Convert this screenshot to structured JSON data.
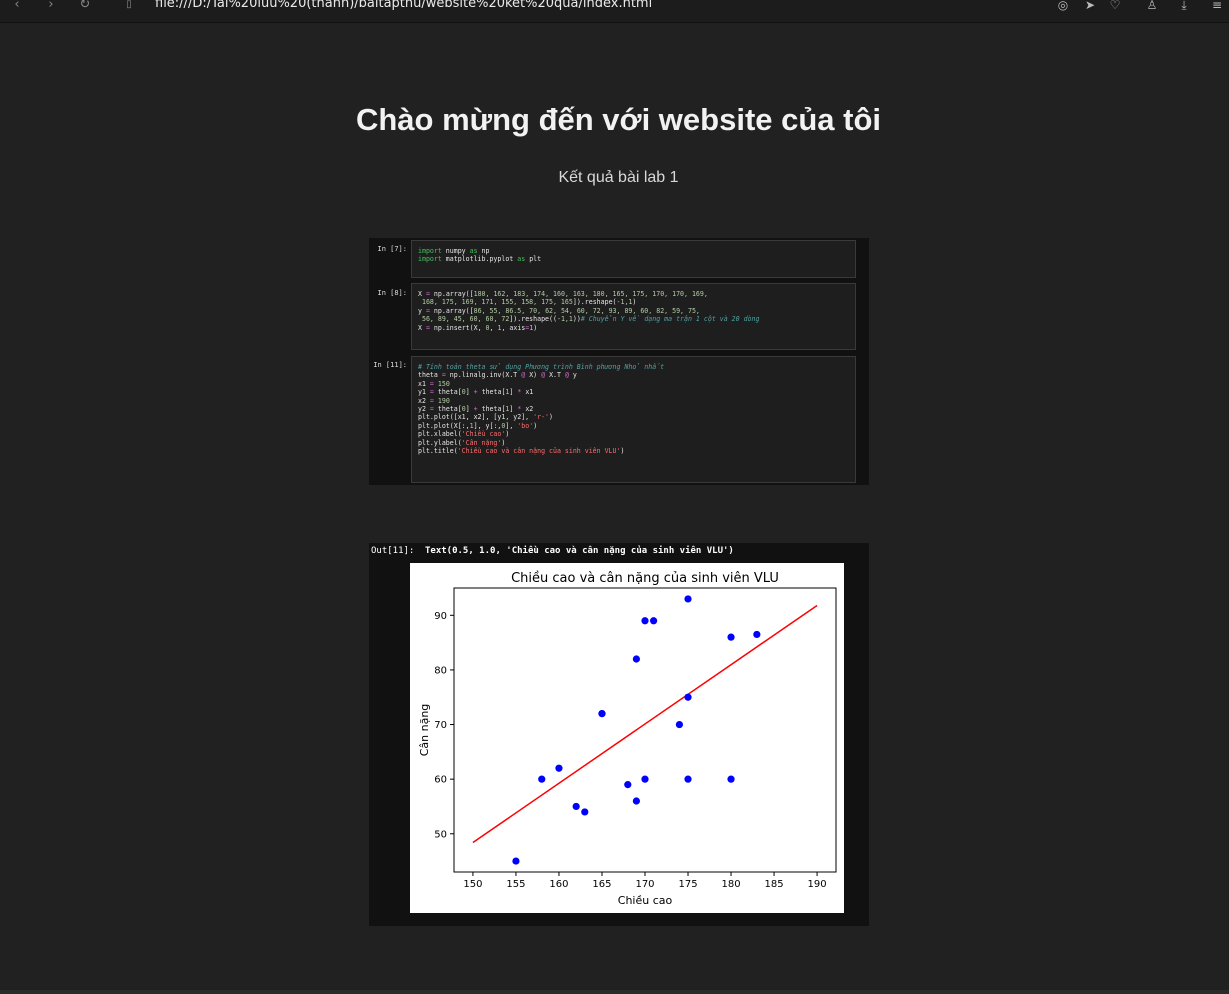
{
  "browser": {
    "url": "file:///D:/Tai%20luu%20(thanh)/baitapthu/website%20ket%20qua/index.html",
    "icons": [
      "back-icon",
      "forward-icon",
      "reload-icon",
      "page-icon",
      "screenshot-icon",
      "send-icon",
      "heart-icon",
      "profile-icon",
      "download-icon",
      "menu-icon"
    ]
  },
  "page": {
    "title": "Chào mừng đến với website của tôi",
    "subtitle": "Kết quả bài lab 1"
  },
  "notebook": {
    "cells": [
      {
        "prompt": "In [7]:"
      },
      {
        "prompt": "In [8]:"
      },
      {
        "prompt": "In [11]:"
      }
    ]
  },
  "output": {
    "prompt": "Out[11]:",
    "text": "Text(0.5, 1.0, 'Chiều cao và cân nặng của sinh viên VLU')"
  },
  "chart_data": {
    "type": "scatter",
    "title": "Chiều cao và cân nặng của sinh viên VLU",
    "xlabel": "Chiều cao",
    "ylabel": "Cân nặng",
    "xlim": [
      147.8,
      192.2
    ],
    "ylim": [
      43.0,
      95.0
    ],
    "xticks": [
      "150",
      "155",
      "160",
      "165",
      "170",
      "175",
      "180",
      "185",
      "190"
    ],
    "yticks": [
      "50",
      "60",
      "70",
      "80",
      "90"
    ],
    "points_color": "#0000ff",
    "line_color": "#ff0000",
    "x": [
      180,
      162,
      183,
      174,
      160,
      163,
      180,
      165,
      175,
      170,
      170,
      169,
      168,
      175,
      169,
      171,
      155,
      158,
      175,
      165
    ],
    "y": [
      86,
      55,
      86.5,
      70,
      62,
      54,
      60,
      72,
      93,
      89,
      60,
      82,
      59,
      75,
      56,
      89,
      45,
      60,
      60,
      72
    ],
    "fit_line": {
      "x": [
        150,
        190
      ],
      "y": [
        48.4,
        91.8
      ]
    }
  }
}
